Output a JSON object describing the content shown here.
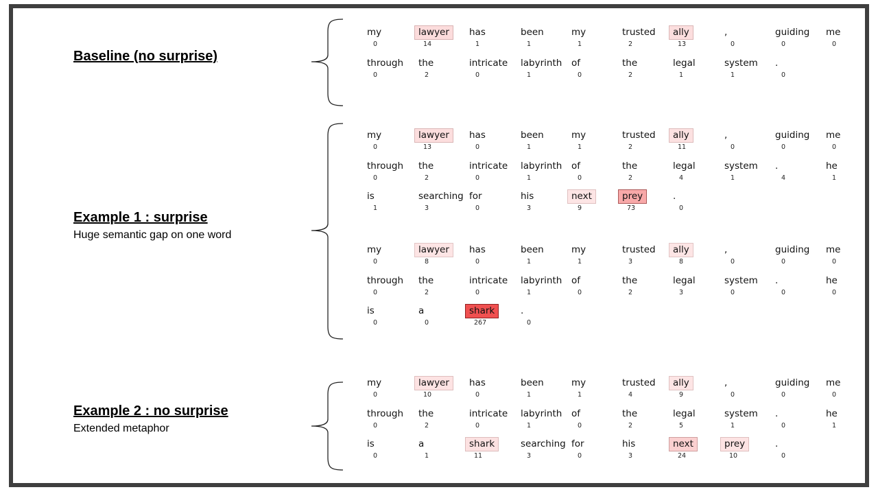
{
  "sections": [
    {
      "title": "Baseline (no surprise)",
      "subtitle": "",
      "blocks": [
        {
          "rows": [
            [
              [
                "my",
                "0"
              ],
              [
                "lawyer",
                "14"
              ],
              [
                "has",
                "1"
              ],
              [
                "been",
                "1"
              ],
              [
                "my",
                "1"
              ],
              [
                "trusted",
                "2"
              ],
              [
                "ally",
                "13"
              ],
              [
                ",",
                "0"
              ],
              [
                "guiding",
                "0"
              ],
              [
                "me",
                "0"
              ]
            ],
            [
              [
                "through",
                "0"
              ],
              [
                "the",
                "2"
              ],
              [
                "intricate",
                "0"
              ],
              [
                "labyrinth",
                "1"
              ],
              [
                "of",
                "0"
              ],
              [
                "the",
                "2"
              ],
              [
                "legal",
                "1"
              ],
              [
                "system",
                "1"
              ],
              [
                ".",
                "0"
              ]
            ]
          ]
        }
      ]
    },
    {
      "title": "Example 1 : surprise",
      "subtitle": "Huge semantic gap on one word",
      "blocks": [
        {
          "rows": [
            [
              [
                "my",
                "0"
              ],
              [
                "lawyer",
                "13"
              ],
              [
                "has",
                "0"
              ],
              [
                "been",
                "1"
              ],
              [
                "my",
                "1"
              ],
              [
                "trusted",
                "2"
              ],
              [
                "ally",
                "11"
              ],
              [
                ",",
                "0"
              ],
              [
                "guiding",
                "0"
              ],
              [
                "me",
                "0"
              ]
            ],
            [
              [
                "through",
                "0"
              ],
              [
                "the",
                "2"
              ],
              [
                "intricate",
                "0"
              ],
              [
                "labyrinth",
                "1"
              ],
              [
                "of",
                "0"
              ],
              [
                "the",
                "2"
              ],
              [
                "legal",
                "4"
              ],
              [
                "system",
                "1"
              ],
              [
                ".",
                "4"
              ],
              [
                "he",
                "1"
              ]
            ],
            [
              [
                "is",
                "1"
              ],
              [
                "searching",
                "3"
              ],
              [
                "for",
                "0"
              ],
              [
                "his",
                "3"
              ],
              [
                "next",
                "9"
              ],
              [
                "prey",
                "73"
              ],
              [
                ".",
                "0"
              ]
            ]
          ]
        },
        {
          "rows": [
            [
              [
                "my",
                "0"
              ],
              [
                "lawyer",
                "8"
              ],
              [
                "has",
                "0"
              ],
              [
                "been",
                "1"
              ],
              [
                "my",
                "1"
              ],
              [
                "trusted",
                "3"
              ],
              [
                "ally",
                "8"
              ],
              [
                ",",
                "0"
              ],
              [
                "guiding",
                "0"
              ],
              [
                "me",
                "0"
              ]
            ],
            [
              [
                "through",
                "0"
              ],
              [
                "the",
                "2"
              ],
              [
                "intricate",
                "0"
              ],
              [
                "labyrinth",
                "1"
              ],
              [
                "of",
                "0"
              ],
              [
                "the",
                "2"
              ],
              [
                "legal",
                "3"
              ],
              [
                "system",
                "0"
              ],
              [
                ".",
                "0"
              ],
              [
                "he",
                "0"
              ]
            ],
            [
              [
                "is",
                "0"
              ],
              [
                "a",
                "0"
              ],
              [
                "shark",
                "267"
              ],
              [
                ".",
                "0"
              ]
            ]
          ]
        }
      ]
    },
    {
      "title": "Example 2 : no surprise",
      "subtitle": "Extended metaphor",
      "blocks": [
        {
          "rows": [
            [
              [
                "my",
                "0"
              ],
              [
                "lawyer",
                "10"
              ],
              [
                "has",
                "0"
              ],
              [
                "been",
                "1"
              ],
              [
                "my",
                "1"
              ],
              [
                "trusted",
                "4"
              ],
              [
                "ally",
                "9"
              ],
              [
                ",",
                "0"
              ],
              [
                "guiding",
                "0"
              ],
              [
                "me",
                "0"
              ]
            ],
            [
              [
                "through",
                "0"
              ],
              [
                "the",
                "2"
              ],
              [
                "intricate",
                "0"
              ],
              [
                "labyrinth",
                "1"
              ],
              [
                "of",
                "0"
              ],
              [
                "the",
                "2"
              ],
              [
                "legal",
                "5"
              ],
              [
                "system",
                "1"
              ],
              [
                ".",
                "0"
              ],
              [
                "he",
                "1"
              ]
            ],
            [
              [
                "is",
                "0"
              ],
              [
                "a",
                "1"
              ],
              [
                "shark",
                "11"
              ],
              [
                "searching",
                "3"
              ],
              [
                "for",
                "0"
              ],
              [
                "his",
                "3"
              ],
              [
                "next",
                "24"
              ],
              [
                "prey",
                "10"
              ],
              [
                ".",
                "0"
              ]
            ]
          ]
        }
      ]
    }
  ],
  "heat_color": "#f05050"
}
